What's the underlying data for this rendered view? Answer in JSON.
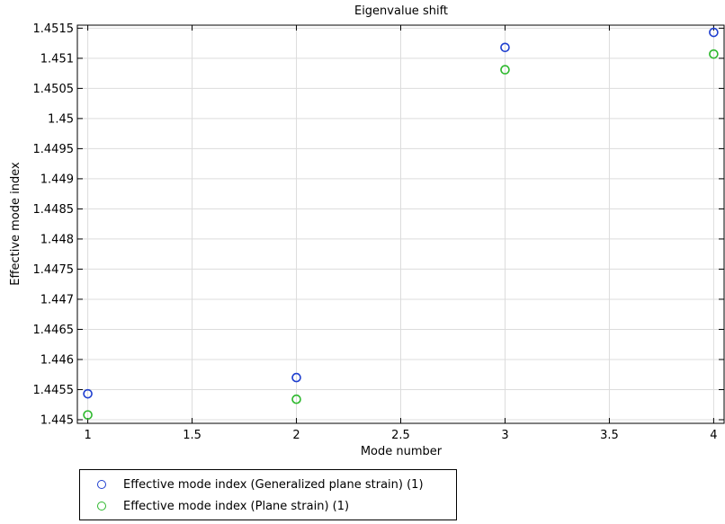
{
  "chart_data": {
    "type": "scatter",
    "title": "Eigenvalue shift",
    "xlabel": "Mode number",
    "ylabel": "Effective mode index",
    "xlim": [
      0.95,
      4.05
    ],
    "ylim": [
      1.44494,
      1.45155
    ],
    "x_ticks": [
      1,
      1.5,
      2,
      2.5,
      3,
      3.5,
      4
    ],
    "x_tick_labels": [
      "1",
      "1.5",
      "2",
      "2.5",
      "3",
      "3.5",
      "4"
    ],
    "y_ticks": [
      1.445,
      1.4455,
      1.446,
      1.4465,
      1.447,
      1.4475,
      1.448,
      1.4485,
      1.449,
      1.4495,
      1.45,
      1.4505,
      1.451,
      1.4515
    ],
    "y_tick_labels": [
      "1.445",
      "1.4455",
      "1.446",
      "1.4465",
      "1.447",
      "1.4475",
      "1.448",
      "1.4485",
      "1.449",
      "1.4495",
      "1.45",
      "1.4505",
      "1.451",
      "1.4515"
    ],
    "grid": true,
    "legend_position": "bottom-left",
    "series": [
      {
        "name": "Effective mode index (Generalized plane strain) (1)",
        "color": "#1f3fcf",
        "x": [
          1,
          2,
          3,
          4
        ],
        "y": [
          1.44543,
          1.4457,
          1.45118,
          1.45143
        ]
      },
      {
        "name": "Effective mode index (Plane strain) (1)",
        "color": "#2db82d",
        "x": [
          1,
          2,
          3,
          4
        ],
        "y": [
          1.44508,
          1.44534,
          1.45081,
          1.45107
        ]
      }
    ]
  }
}
